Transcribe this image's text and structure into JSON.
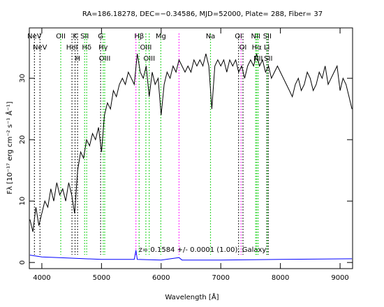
{
  "chart_data": {
    "type": "line",
    "title": "RA=186.18278, DEC=−0.34586, MJD=52000, Plate= 288, Fiber= 37",
    "annotation": "z= 0.1584 +/- 0.0001 (1.00), Galaxy",
    "x_label": "Wavelength [Å]",
    "y_label": "Fλ [10⁻¹⁷ erg cm⁻² s⁻¹ Å⁻¹]",
    "xlim": [
      3790,
      9210
    ],
    "ylim": [
      -1,
      38.2
    ],
    "xticks": [
      4000,
      5000,
      6000,
      7000,
      8000,
      9000
    ],
    "yticks": [
      0,
      10,
      20,
      30
    ],
    "series": [
      {
        "color": "#000000",
        "x": [
          3800,
          3850,
          3900,
          3950,
          4000,
          4050,
          4100,
          4150,
          4200,
          4250,
          4300,
          4350,
          4400,
          4450,
          4500,
          4550,
          4600,
          4650,
          4700,
          4750,
          4800,
          4850,
          4900,
          4950,
          5000,
          5050,
          5100,
          5150,
          5200,
          5250,
          5300,
          5350,
          5400,
          5450,
          5500,
          5550,
          5600,
          5650,
          5700,
          5750,
          5800,
          5850,
          5900,
          5950,
          6000,
          6050,
          6100,
          6150,
          6200,
          6250,
          6300,
          6350,
          6400,
          6450,
          6500,
          6550,
          6600,
          6650,
          6700,
          6750,
          6800,
          6850,
          6900,
          6950,
          7000,
          7050,
          7100,
          7150,
          7200,
          7250,
          7300,
          7350,
          7400,
          7450,
          7500,
          7550,
          7600,
          7650,
          7700,
          7750,
          7800,
          7850,
          7900,
          7950,
          8000,
          8050,
          8100,
          8150,
          8200,
          8250,
          8300,
          8350,
          8400,
          8450,
          8500,
          8550,
          8600,
          8650,
          8700,
          8750,
          8800,
          8850,
          8900,
          8950,
          9000,
          9050,
          9100,
          9150,
          9200
        ],
        "values": [
          7,
          5,
          9,
          6,
          8,
          10,
          9,
          12,
          10,
          13,
          11,
          12,
          10,
          13,
          11,
          8,
          15,
          18,
          17,
          20,
          19,
          21,
          20,
          22,
          18,
          24,
          26,
          25,
          28,
          27,
          29,
          30,
          29,
          31,
          30,
          29,
          34,
          31,
          30,
          32,
          27,
          31,
          29,
          30,
          24,
          29,
          31,
          30,
          32,
          31,
          33,
          32,
          31,
          32,
          31,
          33,
          32,
          33,
          32,
          34,
          32,
          25,
          32,
          33,
          32,
          33,
          31,
          33,
          32,
          33,
          31,
          32,
          30,
          32,
          33,
          32,
          34,
          32,
          33,
          31,
          32,
          30,
          31,
          32,
          31,
          30,
          29,
          28,
          27,
          29,
          30,
          28,
          29,
          31,
          30,
          28,
          29,
          31,
          30,
          32,
          29,
          30,
          31,
          32,
          28,
          30,
          29,
          27,
          25
        ]
      },
      {
        "color": "#0000ff",
        "x": [
          3800,
          4000,
          4500,
          5000,
          5550,
          5577,
          5600,
          6000,
          6300,
          6350,
          7000,
          8000,
          9200
        ],
        "values": [
          1.2,
          0.9,
          0.7,
          0.5,
          0.5,
          2.0,
          0.5,
          0.4,
          0.8,
          0.4,
          0.4,
          0.5,
          0.6
        ]
      }
    ],
    "line_markers": [
      {
        "label": "NeV",
        "x": 3876,
        "color": "#000000"
      },
      {
        "label": "NeV",
        "x": 3969,
        "color": "#000000"
      },
      {
        "label": "OII",
        "x": 4317,
        "color": "#00cc00"
      },
      {
        "label": "HeI",
        "x": 4505,
        "color": "#000000"
      },
      {
        "label": "K",
        "x": 4557,
        "color": "#000000"
      },
      {
        "label": "H",
        "x": 4599,
        "color": "#000000"
      },
      {
        "label": "SII",
        "x": 4717,
        "color": "#00cc00"
      },
      {
        "label": "Hδ",
        "x": 4752,
        "color": "#00cc00"
      },
      {
        "label": "G",
        "x": 4986,
        "color": "#000000"
      },
      {
        "label": "Hγ",
        "x": 5028,
        "color": "#00cc00"
      },
      {
        "label": "OIII",
        "x": 5054,
        "color": "#00cc00"
      },
      {
        "label": "Hβ",
        "x": 5631,
        "color": "#00cc00"
      },
      {
        "label": "OIII",
        "x": 5744,
        "color": "#00cc00"
      },
      {
        "label": "OIII",
        "x": 5800,
        "color": "#00cc00"
      },
      {
        "label": "Mg",
        "x": 5995,
        "color": "#00cc00"
      },
      {
        "label": "Na",
        "x": 6828,
        "color": "#00cc00"
      },
      {
        "label": "OI",
        "x": 7298,
        "color": "#000000"
      },
      {
        "label": "OI",
        "x": 7372,
        "color": "#000000"
      },
      {
        "label": "NII",
        "x": 7585,
        "color": "#00cc00"
      },
      {
        "label": "Hα",
        "x": 7603,
        "color": "#00cc00"
      },
      {
        "label": "NII",
        "x": 7626,
        "color": "#00cc00"
      },
      {
        "label": "Li",
        "x": 7771,
        "color": "#000000"
      },
      {
        "label": "SII",
        "x": 7780,
        "color": "#00cc00"
      },
      {
        "label": "SII",
        "x": 7797,
        "color": "#000000"
      }
    ],
    "sky_lines": {
      "color": "#ff00ff",
      "x": [
        5577,
        6300,
        7340
      ]
    }
  }
}
